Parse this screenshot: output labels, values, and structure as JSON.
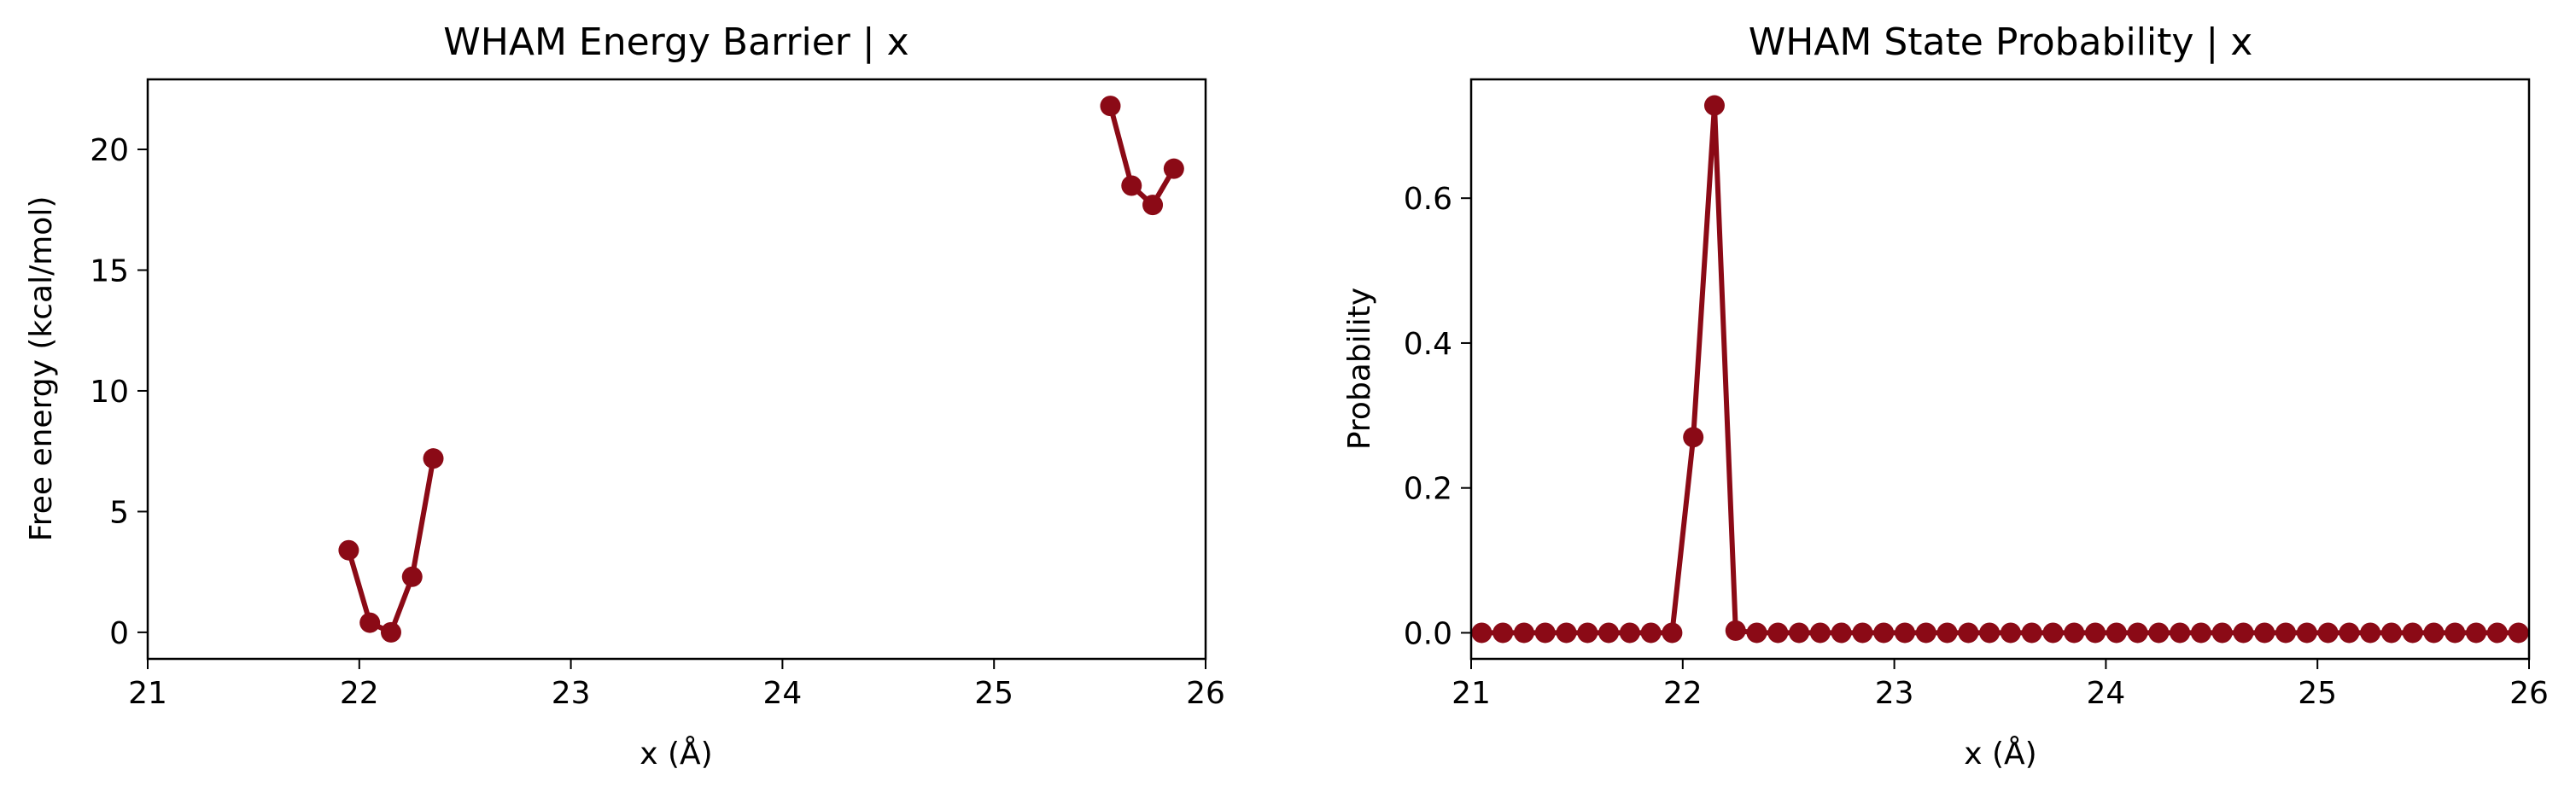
{
  "chart_data": [
    {
      "type": "line",
      "title": "WHAM Energy Barrier | x",
      "xlabel": "x (Å)",
      "ylabel": "Free energy (kcal/mol)",
      "xlim": [
        21,
        26
      ],
      "ylim": [
        -1.1,
        22.9
      ],
      "xticks": [
        21,
        22,
        23,
        24,
        25,
        26
      ],
      "yticks": [
        0,
        5,
        10,
        15,
        20
      ],
      "color": "#8b0a16",
      "series": [
        {
          "x": [
            21.95,
            22.05,
            22.15,
            22.25,
            22.35
          ],
          "y": [
            3.4,
            0.4,
            0.0,
            2.3,
            7.2
          ]
        },
        {
          "x": [
            25.55,
            25.65,
            25.75,
            25.85
          ],
          "y": [
            21.8,
            18.5,
            17.7,
            19.2
          ]
        }
      ]
    },
    {
      "type": "line",
      "title": "WHAM State Probability | x",
      "xlabel": "x (Å)",
      "ylabel": "Probability",
      "xlim": [
        21,
        26
      ],
      "ylim": [
        -0.036,
        0.764
      ],
      "xticks": [
        21,
        22,
        23,
        24,
        25,
        26
      ],
      "yticks": [
        0.0,
        0.2,
        0.4,
        0.6
      ],
      "yformat": 1,
      "color": "#8b0a16",
      "series": [
        {
          "x": [
            21.05,
            21.15,
            21.25,
            21.35,
            21.45,
            21.55,
            21.65,
            21.75,
            21.85,
            21.95,
            22.05,
            22.15,
            22.25,
            22.35,
            22.45,
            22.55,
            22.65,
            22.75,
            22.85,
            22.95,
            23.05,
            23.15,
            23.25,
            23.35,
            23.45,
            23.55,
            23.65,
            23.75,
            23.85,
            23.95,
            24.05,
            24.15,
            24.25,
            24.35,
            24.45,
            24.55,
            24.65,
            24.75,
            24.85,
            24.95,
            25.05,
            25.15,
            25.25,
            25.35,
            25.45,
            25.55,
            25.65,
            25.75,
            25.85,
            25.95
          ],
          "y": [
            0,
            0,
            0,
            0,
            0,
            0,
            0,
            0,
            0,
            0,
            0.27,
            0.728,
            0.003,
            0,
            0,
            0,
            0,
            0,
            0,
            0,
            0,
            0,
            0,
            0,
            0,
            0,
            0,
            0,
            0,
            0,
            0,
            0,
            0,
            0,
            0,
            0,
            0,
            0,
            0,
            0,
            0,
            0,
            0,
            0,
            0,
            0,
            0,
            0,
            0,
            0
          ]
        }
      ]
    }
  ]
}
